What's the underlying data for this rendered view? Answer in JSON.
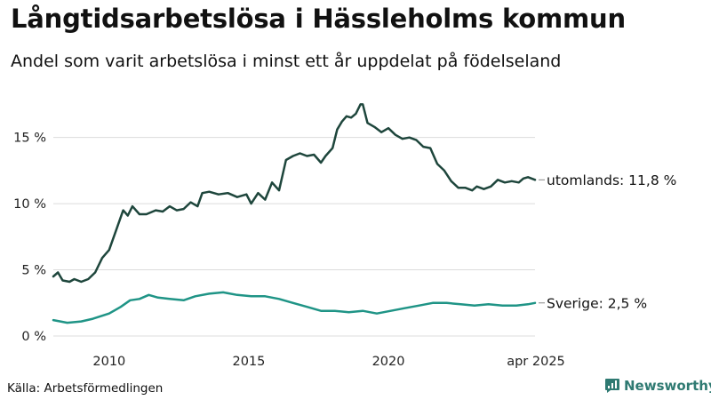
{
  "chart_data": {
    "type": "line",
    "title": "Långtidsarbetslösa i Hässleholms kommun",
    "subtitle": "Andel som varit arbetslösa i minst ett år uppdelat på födelseland",
    "source": "Källa: Arbetsförmedlingen",
    "y_tick_labels": [
      "0 %",
      "5 %",
      "10 %",
      "15 %"
    ],
    "y_ticks": [
      0,
      5,
      10,
      15
    ],
    "x_tick_labels": [
      "2010",
      "2015",
      "2020",
      "apr 2025"
    ],
    "x_ticks": [
      "2010-01",
      "2015-01",
      "2020-01",
      "2025-04"
    ],
    "ylim": [
      0,
      18
    ],
    "xlim": [
      "2008-01",
      "2025-04"
    ],
    "grid": "horizontal",
    "series": [
      {
        "name": "utomlands",
        "end_label": "utomlands: 11,8 %",
        "color": "#1e463c",
        "points": [
          [
            "2008-01",
            4.5
          ],
          [
            "2008-03",
            4.8
          ],
          [
            "2008-05",
            4.2
          ],
          [
            "2008-08",
            4.1
          ],
          [
            "2008-10",
            4.3
          ],
          [
            "2009-01",
            4.1
          ],
          [
            "2009-04",
            4.3
          ],
          [
            "2009-07",
            4.8
          ],
          [
            "2009-10",
            5.9
          ],
          [
            "2010-01",
            6.5
          ],
          [
            "2010-04",
            8.0
          ],
          [
            "2010-07",
            9.5
          ],
          [
            "2010-09",
            9.1
          ],
          [
            "2010-11",
            9.8
          ],
          [
            "2011-02",
            9.2
          ],
          [
            "2011-05",
            9.2
          ],
          [
            "2011-09",
            9.5
          ],
          [
            "2011-12",
            9.4
          ],
          [
            "2012-03",
            9.8
          ],
          [
            "2012-06",
            9.5
          ],
          [
            "2012-09",
            9.6
          ],
          [
            "2012-12",
            10.1
          ],
          [
            "2013-03",
            9.8
          ],
          [
            "2013-05",
            10.8
          ],
          [
            "2013-08",
            10.9
          ],
          [
            "2013-12",
            10.7
          ],
          [
            "2014-04",
            10.8
          ],
          [
            "2014-08",
            10.5
          ],
          [
            "2014-12",
            10.7
          ],
          [
            "2015-02",
            10.0
          ],
          [
            "2015-05",
            10.8
          ],
          [
            "2015-08",
            10.3
          ],
          [
            "2015-11",
            11.6
          ],
          [
            "2016-02",
            11.0
          ],
          [
            "2016-05",
            13.3
          ],
          [
            "2016-08",
            13.6
          ],
          [
            "2016-11",
            13.8
          ],
          [
            "2017-02",
            13.6
          ],
          [
            "2017-05",
            13.7
          ],
          [
            "2017-08",
            13.1
          ],
          [
            "2017-10",
            13.6
          ],
          [
            "2018-01",
            14.2
          ],
          [
            "2018-03",
            15.6
          ],
          [
            "2018-05",
            16.2
          ],
          [
            "2018-07",
            16.6
          ],
          [
            "2018-09",
            16.5
          ],
          [
            "2018-11",
            16.8
          ],
          [
            "2019-01",
            17.5
          ],
          [
            "2019-02",
            17.5
          ],
          [
            "2019-04",
            16.1
          ],
          [
            "2019-07",
            15.8
          ],
          [
            "2019-10",
            15.4
          ],
          [
            "2020-01",
            15.7
          ],
          [
            "2020-04",
            15.2
          ],
          [
            "2020-07",
            14.9
          ],
          [
            "2020-10",
            15.0
          ],
          [
            "2021-01",
            14.8
          ],
          [
            "2021-04",
            14.3
          ],
          [
            "2021-07",
            14.2
          ],
          [
            "2021-10",
            13.0
          ],
          [
            "2022-01",
            12.5
          ],
          [
            "2022-04",
            11.7
          ],
          [
            "2022-07",
            11.2
          ],
          [
            "2022-10",
            11.2
          ],
          [
            "2023-01",
            11.0
          ],
          [
            "2023-03",
            11.3
          ],
          [
            "2023-06",
            11.1
          ],
          [
            "2023-09",
            11.3
          ],
          [
            "2023-12",
            11.8
          ],
          [
            "2024-03",
            11.6
          ],
          [
            "2024-06",
            11.7
          ],
          [
            "2024-09",
            11.6
          ],
          [
            "2024-11",
            11.9
          ],
          [
            "2025-01",
            12.0
          ],
          [
            "2025-04",
            11.8
          ]
        ]
      },
      {
        "name": "Sverige",
        "end_label": "Sverige:  2,5 %",
        "color": "#1f9486",
        "points": [
          [
            "2008-01",
            1.2
          ],
          [
            "2008-04",
            1.1
          ],
          [
            "2008-07",
            1.0
          ],
          [
            "2009-01",
            1.1
          ],
          [
            "2009-06",
            1.3
          ],
          [
            "2010-01",
            1.7
          ],
          [
            "2010-06",
            2.2
          ],
          [
            "2010-10",
            2.7
          ],
          [
            "2011-02",
            2.8
          ],
          [
            "2011-06",
            3.1
          ],
          [
            "2011-10",
            2.9
          ],
          [
            "2012-03",
            2.8
          ],
          [
            "2012-09",
            2.7
          ],
          [
            "2013-02",
            3.0
          ],
          [
            "2013-08",
            3.2
          ],
          [
            "2014-02",
            3.3
          ],
          [
            "2014-08",
            3.1
          ],
          [
            "2015-02",
            3.0
          ],
          [
            "2015-08",
            3.0
          ],
          [
            "2016-02",
            2.8
          ],
          [
            "2016-08",
            2.5
          ],
          [
            "2017-02",
            2.2
          ],
          [
            "2017-08",
            1.9
          ],
          [
            "2018-02",
            1.9
          ],
          [
            "2018-08",
            1.8
          ],
          [
            "2019-02",
            1.9
          ],
          [
            "2019-08",
            1.7
          ],
          [
            "2020-02",
            1.9
          ],
          [
            "2020-08",
            2.1
          ],
          [
            "2021-02",
            2.3
          ],
          [
            "2021-08",
            2.5
          ],
          [
            "2022-02",
            2.5
          ],
          [
            "2022-08",
            2.4
          ],
          [
            "2023-02",
            2.3
          ],
          [
            "2023-08",
            2.4
          ],
          [
            "2024-02",
            2.3
          ],
          [
            "2024-08",
            2.3
          ],
          [
            "2025-01",
            2.4
          ],
          [
            "2025-04",
            2.5
          ]
        ]
      }
    ]
  },
  "footer": {
    "brand": "Newsworthy"
  },
  "colors": {
    "grid": "#dcdcdc",
    "text": "#111111",
    "brand": "#2f7a72"
  }
}
